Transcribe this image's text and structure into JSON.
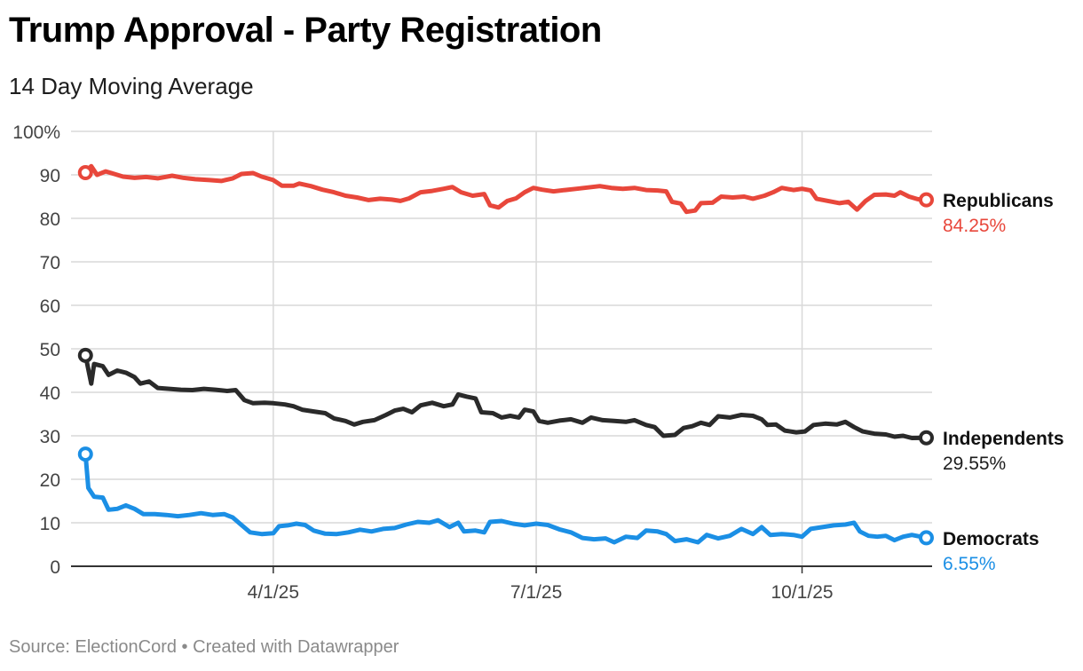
{
  "title": "Trump Approval - Party Registration",
  "subtitle": "14 Day Moving Average",
  "footer": {
    "source_label": "Source: ElectionCord",
    "separator": "•",
    "created_with": "Created with Datawrapper"
  },
  "chart_data": {
    "type": "line",
    "title": "Trump Approval - Party Registration",
    "subtitle": "14 Day Moving Average",
    "xlabel": "",
    "ylabel": "",
    "ylim": [
      0,
      100
    ],
    "y_ticks": [
      {
        "value": 0,
        "label": "0"
      },
      {
        "value": 10,
        "label": "10"
      },
      {
        "value": 20,
        "label": "20"
      },
      {
        "value": 30,
        "label": "30"
      },
      {
        "value": 40,
        "label": "40"
      },
      {
        "value": 50,
        "label": "50"
      },
      {
        "value": 60,
        "label": "60"
      },
      {
        "value": 70,
        "label": "70"
      },
      {
        "value": 80,
        "label": "80"
      },
      {
        "value": 90,
        "label": "90"
      },
      {
        "value": 100,
        "label": "100%"
      }
    ],
    "xlim": [
      "2025-01-21",
      "2025-11-15"
    ],
    "x_ticks": [
      {
        "date": "2025-04-01",
        "label": "4/1/25"
      },
      {
        "date": "2025-07-01",
        "label": "7/1/25"
      },
      {
        "date": "2025-10-01",
        "label": "10/1/25"
      }
    ],
    "grid": true,
    "legend": "direct labels at line ends",
    "series": [
      {
        "name": "Republicans",
        "color": "#e8473b",
        "end_label": "84.25%",
        "points": [
          [
            "2025-01-26",
            90.5
          ],
          [
            "2025-01-28",
            92.0
          ],
          [
            "2025-01-30",
            90.0
          ],
          [
            "2025-02-02",
            90.8
          ],
          [
            "2025-02-05",
            90.2
          ],
          [
            "2025-02-08",
            89.6
          ],
          [
            "2025-02-12",
            89.3
          ],
          [
            "2025-02-16",
            89.5
          ],
          [
            "2025-02-20",
            89.2
          ],
          [
            "2025-02-25",
            89.8
          ],
          [
            "2025-03-01",
            89.3
          ],
          [
            "2025-03-05",
            89.0
          ],
          [
            "2025-03-10",
            88.8
          ],
          [
            "2025-03-14",
            88.6
          ],
          [
            "2025-03-18",
            89.2
          ],
          [
            "2025-03-21",
            90.2
          ],
          [
            "2025-03-25",
            90.4
          ],
          [
            "2025-03-28",
            89.6
          ],
          [
            "2025-04-01",
            88.8
          ],
          [
            "2025-04-04",
            87.5
          ],
          [
            "2025-04-08",
            87.5
          ],
          [
            "2025-04-10",
            88.0
          ],
          [
            "2025-04-14",
            87.4
          ],
          [
            "2025-04-18",
            86.6
          ],
          [
            "2025-04-22",
            86.0
          ],
          [
            "2025-04-26",
            85.2
          ],
          [
            "2025-04-30",
            84.8
          ],
          [
            "2025-05-04",
            84.2
          ],
          [
            "2025-05-08",
            84.5
          ],
          [
            "2025-05-12",
            84.3
          ],
          [
            "2025-05-15",
            84.0
          ],
          [
            "2025-05-18",
            84.6
          ],
          [
            "2025-05-22",
            86.0
          ],
          [
            "2025-05-26",
            86.3
          ],
          [
            "2025-05-30",
            86.8
          ],
          [
            "2025-06-02",
            87.2
          ],
          [
            "2025-06-05",
            86.0
          ],
          [
            "2025-06-09",
            85.2
          ],
          [
            "2025-06-13",
            85.6
          ],
          [
            "2025-06-15",
            83.0
          ],
          [
            "2025-06-18",
            82.5
          ],
          [
            "2025-06-21",
            84.0
          ],
          [
            "2025-06-24",
            84.6
          ],
          [
            "2025-06-27",
            86.0
          ],
          [
            "2025-06-30",
            87.0
          ],
          [
            "2025-07-03",
            86.6
          ],
          [
            "2025-07-07",
            86.2
          ],
          [
            "2025-07-11",
            86.5
          ],
          [
            "2025-07-15",
            86.8
          ],
          [
            "2025-07-19",
            87.1
          ],
          [
            "2025-07-23",
            87.4
          ],
          [
            "2025-07-27",
            87.0
          ],
          [
            "2025-07-31",
            86.8
          ],
          [
            "2025-08-04",
            87.0
          ],
          [
            "2025-08-08",
            86.5
          ],
          [
            "2025-08-12",
            86.4
          ],
          [
            "2025-08-15",
            86.2
          ],
          [
            "2025-08-17",
            83.8
          ],
          [
            "2025-08-20",
            83.4
          ],
          [
            "2025-08-22",
            81.5
          ],
          [
            "2025-08-25",
            81.8
          ],
          [
            "2025-08-27",
            83.5
          ],
          [
            "2025-08-31",
            83.6
          ],
          [
            "2025-09-03",
            85.0
          ],
          [
            "2025-09-07",
            84.8
          ],
          [
            "2025-09-11",
            85.0
          ],
          [
            "2025-09-14",
            84.5
          ],
          [
            "2025-09-18",
            85.2
          ],
          [
            "2025-09-21",
            86.0
          ],
          [
            "2025-09-24",
            87.0
          ],
          [
            "2025-09-28",
            86.5
          ],
          [
            "2025-10-01",
            86.8
          ],
          [
            "2025-10-04",
            86.4
          ],
          [
            "2025-10-06",
            84.5
          ],
          [
            "2025-10-10",
            84.0
          ],
          [
            "2025-10-14",
            83.5
          ],
          [
            "2025-10-17",
            83.8
          ],
          [
            "2025-10-20",
            82.0
          ],
          [
            "2025-10-23",
            84.0
          ],
          [
            "2025-10-26",
            85.4
          ],
          [
            "2025-10-30",
            85.5
          ],
          [
            "2025-11-02",
            85.2
          ],
          [
            "2025-11-04",
            86.0
          ],
          [
            "2025-11-07",
            85.0
          ],
          [
            "2025-11-10",
            84.4
          ],
          [
            "2025-11-13",
            84.25
          ]
        ]
      },
      {
        "name": "Independents",
        "color": "#2a2a2a",
        "end_label": "29.55%",
        "points": [
          [
            "2025-01-26",
            48.5
          ],
          [
            "2025-01-28",
            42.0
          ],
          [
            "2025-01-29",
            46.5
          ],
          [
            "2025-02-01",
            46.0
          ],
          [
            "2025-02-03",
            44.0
          ],
          [
            "2025-02-06",
            45.0
          ],
          [
            "2025-02-09",
            44.5
          ],
          [
            "2025-02-12",
            43.5
          ],
          [
            "2025-02-14",
            42.0
          ],
          [
            "2025-02-17",
            42.5
          ],
          [
            "2025-02-20",
            41.0
          ],
          [
            "2025-02-24",
            40.8
          ],
          [
            "2025-02-28",
            40.6
          ],
          [
            "2025-03-04",
            40.5
          ],
          [
            "2025-03-08",
            40.8
          ],
          [
            "2025-03-12",
            40.6
          ],
          [
            "2025-03-16",
            40.3
          ],
          [
            "2025-03-19",
            40.5
          ],
          [
            "2025-03-22",
            38.2
          ],
          [
            "2025-03-25",
            37.5
          ],
          [
            "2025-03-29",
            37.6
          ],
          [
            "2025-04-01",
            37.5
          ],
          [
            "2025-04-05",
            37.2
          ],
          [
            "2025-04-08",
            36.8
          ],
          [
            "2025-04-11",
            36.0
          ],
          [
            "2025-04-15",
            35.6
          ],
          [
            "2025-04-19",
            35.2
          ],
          [
            "2025-04-22",
            34.0
          ],
          [
            "2025-04-26",
            33.4
          ],
          [
            "2025-04-29",
            32.6
          ],
          [
            "2025-05-02",
            33.2
          ],
          [
            "2025-05-06",
            33.6
          ],
          [
            "2025-05-10",
            34.8
          ],
          [
            "2025-05-13",
            35.8
          ],
          [
            "2025-05-16",
            36.2
          ],
          [
            "2025-05-19",
            35.4
          ],
          [
            "2025-05-22",
            37.0
          ],
          [
            "2025-05-26",
            37.6
          ],
          [
            "2025-05-30",
            36.8
          ],
          [
            "2025-06-02",
            37.2
          ],
          [
            "2025-06-04",
            39.5
          ],
          [
            "2025-06-07",
            39.0
          ],
          [
            "2025-06-10",
            38.6
          ],
          [
            "2025-06-12",
            35.4
          ],
          [
            "2025-06-16",
            35.2
          ],
          [
            "2025-06-19",
            34.2
          ],
          [
            "2025-06-22",
            34.6
          ],
          [
            "2025-06-25",
            34.2
          ],
          [
            "2025-06-27",
            36.0
          ],
          [
            "2025-06-30",
            35.6
          ],
          [
            "2025-07-02",
            33.4
          ],
          [
            "2025-07-05",
            33.0
          ],
          [
            "2025-07-09",
            33.5
          ],
          [
            "2025-07-13",
            33.8
          ],
          [
            "2025-07-17",
            33.0
          ],
          [
            "2025-07-20",
            34.2
          ],
          [
            "2025-07-24",
            33.6
          ],
          [
            "2025-07-28",
            33.4
          ],
          [
            "2025-08-01",
            33.2
          ],
          [
            "2025-08-04",
            33.6
          ],
          [
            "2025-08-08",
            32.5
          ],
          [
            "2025-08-11",
            32.0
          ],
          [
            "2025-08-14",
            30.0
          ],
          [
            "2025-08-18",
            30.2
          ],
          [
            "2025-08-21",
            31.8
          ],
          [
            "2025-08-24",
            32.2
          ],
          [
            "2025-08-27",
            33.0
          ],
          [
            "2025-08-30",
            32.5
          ],
          [
            "2025-09-02",
            34.5
          ],
          [
            "2025-09-06",
            34.2
          ],
          [
            "2025-09-10",
            34.8
          ],
          [
            "2025-09-14",
            34.6
          ],
          [
            "2025-09-17",
            33.8
          ],
          [
            "2025-09-19",
            32.5
          ],
          [
            "2025-09-22",
            32.6
          ],
          [
            "2025-09-25",
            31.2
          ],
          [
            "2025-09-29",
            30.8
          ],
          [
            "2025-10-02",
            31.0
          ],
          [
            "2025-10-05",
            32.5
          ],
          [
            "2025-10-09",
            32.8
          ],
          [
            "2025-10-13",
            32.6
          ],
          [
            "2025-10-16",
            33.2
          ],
          [
            "2025-10-19",
            32.0
          ],
          [
            "2025-10-22",
            31.0
          ],
          [
            "2025-10-26",
            30.5
          ],
          [
            "2025-10-30",
            30.3
          ],
          [
            "2025-11-02",
            29.8
          ],
          [
            "2025-11-05",
            30.0
          ],
          [
            "2025-11-08",
            29.5
          ],
          [
            "2025-11-13",
            29.55
          ]
        ]
      },
      {
        "name": "Democrats",
        "color": "#1b8fe5",
        "end_label": "6.55%",
        "points": [
          [
            "2025-01-26",
            25.8
          ],
          [
            "2025-01-27",
            18.0
          ],
          [
            "2025-01-29",
            16.0
          ],
          [
            "2025-02-01",
            15.8
          ],
          [
            "2025-02-03",
            13.0
          ],
          [
            "2025-02-06",
            13.2
          ],
          [
            "2025-02-09",
            14.0
          ],
          [
            "2025-02-12",
            13.2
          ],
          [
            "2025-02-15",
            12.0
          ],
          [
            "2025-02-19",
            12.0
          ],
          [
            "2025-02-23",
            11.8
          ],
          [
            "2025-02-27",
            11.5
          ],
          [
            "2025-03-03",
            11.8
          ],
          [
            "2025-03-07",
            12.2
          ],
          [
            "2025-03-11",
            11.8
          ],
          [
            "2025-03-15",
            12.0
          ],
          [
            "2025-03-18",
            11.2
          ],
          [
            "2025-03-21",
            9.5
          ],
          [
            "2025-03-24",
            7.8
          ],
          [
            "2025-03-28",
            7.4
          ],
          [
            "2025-04-01",
            7.6
          ],
          [
            "2025-04-03",
            9.2
          ],
          [
            "2025-04-06",
            9.4
          ],
          [
            "2025-04-09",
            9.8
          ],
          [
            "2025-04-12",
            9.5
          ],
          [
            "2025-04-15",
            8.2
          ],
          [
            "2025-04-19",
            7.5
          ],
          [
            "2025-04-23",
            7.4
          ],
          [
            "2025-04-27",
            7.8
          ],
          [
            "2025-05-01",
            8.4
          ],
          [
            "2025-05-05",
            8.0
          ],
          [
            "2025-05-09",
            8.6
          ],
          [
            "2025-05-13",
            8.8
          ],
          [
            "2025-05-17",
            9.6
          ],
          [
            "2025-05-21",
            10.2
          ],
          [
            "2025-05-25",
            10.0
          ],
          [
            "2025-05-28",
            10.6
          ],
          [
            "2025-06-01",
            9.0
          ],
          [
            "2025-06-04",
            10.0
          ],
          [
            "2025-06-06",
            8.0
          ],
          [
            "2025-06-10",
            8.2
          ],
          [
            "2025-06-13",
            7.8
          ],
          [
            "2025-06-15",
            10.2
          ],
          [
            "2025-06-19",
            10.4
          ],
          [
            "2025-06-23",
            9.8
          ],
          [
            "2025-06-27",
            9.4
          ],
          [
            "2025-07-01",
            9.8
          ],
          [
            "2025-07-05",
            9.5
          ],
          [
            "2025-07-09",
            8.5
          ],
          [
            "2025-07-13",
            7.8
          ],
          [
            "2025-07-17",
            6.5
          ],
          [
            "2025-07-21",
            6.2
          ],
          [
            "2025-07-25",
            6.4
          ],
          [
            "2025-07-28",
            5.5
          ],
          [
            "2025-08-01",
            6.8
          ],
          [
            "2025-08-05",
            6.5
          ],
          [
            "2025-08-08",
            8.2
          ],
          [
            "2025-08-12",
            8.0
          ],
          [
            "2025-08-15",
            7.4
          ],
          [
            "2025-08-18",
            5.8
          ],
          [
            "2025-08-22",
            6.2
          ],
          [
            "2025-08-26",
            5.5
          ],
          [
            "2025-08-29",
            7.2
          ],
          [
            "2025-09-02",
            6.4
          ],
          [
            "2025-09-06",
            7.0
          ],
          [
            "2025-09-10",
            8.6
          ],
          [
            "2025-09-14",
            7.4
          ],
          [
            "2025-09-17",
            9.0
          ],
          [
            "2025-09-20",
            7.2
          ],
          [
            "2025-09-24",
            7.4
          ],
          [
            "2025-09-28",
            7.2
          ],
          [
            "2025-10-01",
            6.8
          ],
          [
            "2025-10-04",
            8.6
          ],
          [
            "2025-10-08",
            9.0
          ],
          [
            "2025-10-12",
            9.4
          ],
          [
            "2025-10-16",
            9.6
          ],
          [
            "2025-10-19",
            10.0
          ],
          [
            "2025-10-21",
            8.0
          ],
          [
            "2025-10-24",
            7.0
          ],
          [
            "2025-10-27",
            6.8
          ],
          [
            "2025-10-30",
            7.0
          ],
          [
            "2025-11-02",
            6.0
          ],
          [
            "2025-11-05",
            6.8
          ],
          [
            "2025-11-08",
            7.2
          ],
          [
            "2025-11-13",
            6.55
          ]
        ]
      }
    ]
  }
}
